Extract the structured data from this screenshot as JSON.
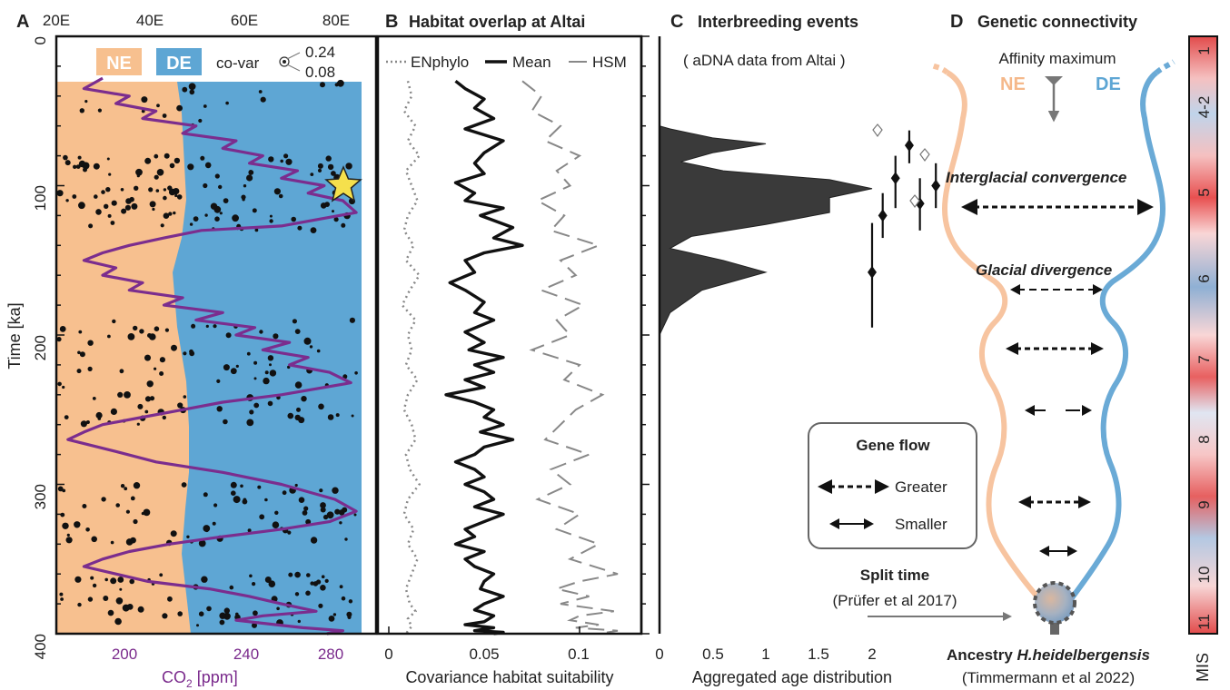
{
  "panels": {
    "a": {
      "letter": "A"
    },
    "b": {
      "letter": "B",
      "title": "Habitat overlap at Altai"
    },
    "c": {
      "letter": "C",
      "title": "Interbreeding events",
      "subtitle": "( aDNA data from Altai )"
    },
    "d": {
      "letter": "D",
      "title": "Genetic connectivity"
    }
  },
  "shared": {
    "ylabel": "Time [ka]",
    "yticks": [
      "0",
      "100",
      "200",
      "300",
      "400"
    ],
    "ylim": [
      0,
      400
    ]
  },
  "panel_a": {
    "xticks_lon": [
      "20E",
      "40E",
      "60E",
      "80E"
    ],
    "xticks_co2": [
      "200",
      "240",
      "280"
    ],
    "xlabel_co2": "CO",
    "xlabel_co2_sub": "2",
    "xlabel_co2_unit": " [ppm]",
    "legend_ne": "NE",
    "legend_de": "DE",
    "covar_label": "co-var",
    "covar_high": "0.24",
    "covar_low": "0.08",
    "colors": {
      "ne": "#f7c08f",
      "de": "#5ea6d4",
      "co2": "#7b2d8e",
      "star": "#f5e04c"
    }
  },
  "panel_b": {
    "xticks": [
      "0",
      "0.05",
      "0.1"
    ],
    "xlabel": "Covariance habitat suitability",
    "legend": [
      "ENphylo",
      "Mean",
      "HSM"
    ]
  },
  "panel_c": {
    "xticks": [
      "0",
      "0.5",
      "1",
      "1.5",
      "2"
    ],
    "xlabel": "Aggregated age distribution"
  },
  "panel_d": {
    "affinity": "Affinity maximum",
    "ne": "NE",
    "de": "DE",
    "interglacial": "Interglacial convergence",
    "glacial": "Glacial divergence",
    "geneflow_title": "Gene flow",
    "greater": "Greater",
    "smaller": "Smaller",
    "split_time": "Split time",
    "split_ref": "(Prüfer et al 2017)",
    "ancestry_prefix": "Ancestry ",
    "ancestry_species": "H.heidelbergensis",
    "ancestry_ref": "(Timmermann et al 2022)",
    "mis_label": "MIS",
    "mis_stages": [
      "1",
      "4-2",
      "5",
      "6",
      "7",
      "8",
      "9",
      "10",
      "11"
    ],
    "colors": {
      "ne": "#f7c4a0",
      "de": "#6aaad6"
    }
  },
  "chart_data": [
    {
      "type": "line",
      "panel": "A",
      "title": "",
      "ylabel": "Time [ka]",
      "xlabel": "CO2 [ppm]",
      "xlim": [
        178,
        292
      ],
      "ylim": [
        0,
        400
      ],
      "series": [
        {
          "name": "CO2",
          "x": [
            195,
            188,
            205,
            200,
            215,
            210,
            230,
            225,
            245,
            240,
            255,
            250,
            268,
            262,
            278,
            272,
            285,
            290,
            262,
            232,
            218,
            205,
            195,
            188,
            200,
            195,
            210,
            205,
            225,
            218,
            240,
            230,
            252,
            245,
            265,
            255,
            272,
            265,
            280,
            288,
            262,
            240,
            225,
            210,
            195,
            188,
            182,
            200,
            215,
            240,
            262,
            282,
            290,
            280,
            262,
            240,
            220,
            205,
            195,
            188,
            200,
            212,
            235,
            250,
            262,
            275,
            255,
            245,
            260,
            270,
            285,
            279
          ],
          "y": [
            28,
            35,
            40,
            45,
            50,
            55,
            60,
            65,
            70,
            75,
            80,
            85,
            90,
            95,
            100,
            105,
            110,
            118,
            127,
            130,
            135,
            140,
            145,
            150,
            155,
            160,
            165,
            170,
            175,
            180,
            185,
            190,
            195,
            200,
            205,
            210,
            215,
            220,
            225,
            232,
            240,
            245,
            250,
            255,
            260,
            265,
            270,
            278,
            285,
            292,
            300,
            310,
            318,
            325,
            330,
            335,
            340,
            345,
            350,
            355,
            360,
            365,
            370,
            375,
            380,
            385,
            388,
            391,
            394,
            396,
            398,
            400
          ]
        }
      ]
    },
    {
      "type": "line",
      "panel": "B",
      "title": "Habitat overlap at Altai",
      "xlabel": "Covariance habitat suitability",
      "xlim": [
        0,
        0.125
      ],
      "ylim": [
        0,
        400
      ],
      "series": [
        {
          "name": "Mean",
          "x": [
            0.035,
            0.04,
            0.05,
            0.045,
            0.055,
            0.04,
            0.06,
            0.05,
            0.045,
            0.05,
            0.035,
            0.045,
            0.04,
            0.06,
            0.048,
            0.065,
            0.055,
            0.07,
            0.05,
            0.04,
            0.045,
            0.032,
            0.04,
            0.05,
            0.045,
            0.055,
            0.04,
            0.05,
            0.042,
            0.06,
            0.045,
            0.055,
            0.04,
            0.05,
            0.03,
            0.045,
            0.055,
            0.05,
            0.06,
            0.048,
            0.065,
            0.05,
            0.045,
            0.035,
            0.045,
            0.05,
            0.04,
            0.05,
            0.055,
            0.045,
            0.06,
            0.05,
            0.04,
            0.045,
            0.035,
            0.05,
            0.04,
            0.045,
            0.055,
            0.05,
            0.048,
            0.06,
            0.05,
            0.045,
            0.055,
            0.05,
            0.04,
            0.055,
            0.045,
            0.06,
            0.055
          ],
          "y": [
            30,
            35,
            42,
            48,
            55,
            62,
            70,
            78,
            85,
            92,
            98,
            105,
            110,
            115,
            120,
            128,
            135,
            140,
            145,
            150,
            158,
            165,
            170,
            178,
            185,
            190,
            198,
            205,
            210,
            215,
            220,
            225,
            230,
            235,
            240,
            245,
            250,
            255,
            260,
            265,
            270,
            275,
            280,
            285,
            290,
            295,
            300,
            305,
            310,
            315,
            320,
            325,
            330,
            335,
            340,
            345,
            350,
            355,
            360,
            365,
            370,
            375,
            380,
            384,
            388,
            392,
            394,
            396,
            398,
            399,
            400
          ]
        },
        {
          "name": "ENphylo",
          "x": [
            0.01,
            0.012,
            0.008,
            0.014,
            0.01,
            0.016,
            0.009,
            0.012,
            0.015,
            0.01,
            0.008,
            0.013,
            0.009,
            0.016,
            0.011,
            0.007,
            0.014,
            0.01,
            0.012,
            0.009,
            0.015,
            0.01,
            0.008,
            0.012,
            0.014,
            0.009,
            0.011,
            0.016,
            0.01,
            0.008,
            0.013,
            0.01,
            0.015,
            0.012,
            0.009,
            0.011,
            0.014,
            0.01,
            0.012,
            0.009
          ],
          "y": [
            30,
            40,
            50,
            60,
            70,
            80,
            90,
            100,
            110,
            120,
            130,
            140,
            150,
            160,
            170,
            180,
            190,
            200,
            210,
            220,
            230,
            240,
            250,
            260,
            270,
            280,
            290,
            300,
            310,
            320,
            330,
            340,
            350,
            360,
            370,
            380,
            385,
            390,
            395,
            400
          ]
        },
        {
          "name": "HSM",
          "x": [
            0.07,
            0.08,
            0.075,
            0.09,
            0.082,
            0.1,
            0.088,
            0.095,
            0.078,
            0.092,
            0.085,
            0.11,
            0.09,
            0.098,
            0.08,
            0.102,
            0.088,
            0.095,
            0.075,
            0.1,
            0.092,
            0.112,
            0.098,
            0.09,
            0.082,
            0.105,
            0.085,
            0.095,
            0.078,
            0.1,
            0.088,
            0.11,
            0.095,
            0.12,
            0.1,
            0.088,
            0.105,
            0.09,
            0.118,
            0.1,
            0.095,
            0.11,
            0.098,
            0.12,
            0.11
          ],
          "y": [
            30,
            40,
            50,
            60,
            70,
            80,
            90,
            100,
            110,
            120,
            130,
            140,
            150,
            160,
            170,
            180,
            190,
            200,
            210,
            220,
            230,
            240,
            250,
            260,
            270,
            280,
            290,
            300,
            310,
            320,
            330,
            340,
            350,
            360,
            365,
            370,
            375,
            380,
            385,
            388,
            391,
            394,
            396,
            398,
            400
          ]
        }
      ]
    },
    {
      "type": "area",
      "panel": "C",
      "title": "Interbreeding events",
      "xlabel": "Aggregated age distribution",
      "xlim": [
        0,
        2.6
      ],
      "ylim": [
        0,
        400
      ],
      "series": [
        {
          "name": "",
          "x": [
            0,
            0.1,
            0.5,
            1.0,
            0.5,
            0.2,
            0.6,
            1.6,
            2.0,
            1.6,
            1.6,
            1.6,
            1.0,
            0.3,
            0.1,
            0.6,
            1.0,
            0.4,
            0.1,
            0
          ],
          "y": [
            60,
            62,
            68,
            72,
            78,
            84,
            90,
            96,
            102,
            108,
            112,
            118,
            126,
            134,
            142,
            150,
            158,
            170,
            185,
            200
          ]
        }
      ],
      "events": [
        {
          "age": 73,
          "x": 2.35,
          "err_low": 63,
          "err_high": 85
        },
        {
          "age": 95,
          "x": 2.22,
          "err_low": 80,
          "err_high": 115
        },
        {
          "age": 120,
          "x": 2.1,
          "err_low": 105,
          "err_high": 135
        },
        {
          "age": 112,
          "x": 2.45,
          "err_low": 95,
          "err_high": 130
        },
        {
          "age": 100,
          "x": 2.6,
          "err_low": 85,
          "err_high": 115
        },
        {
          "age": 158,
          "x": 2.0,
          "err_low": 125,
          "err_high": 195
        }
      ]
    }
  ]
}
